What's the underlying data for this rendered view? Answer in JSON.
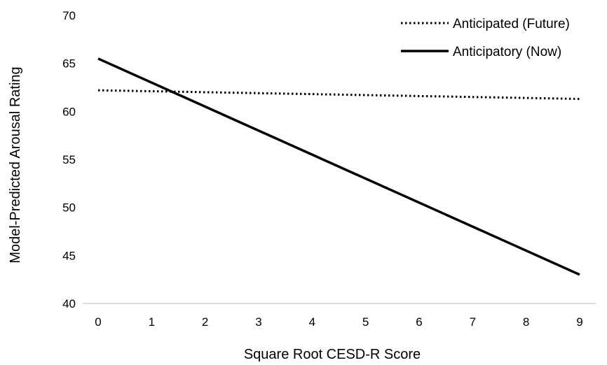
{
  "chart_data": {
    "type": "line",
    "title": "",
    "xlabel": "Square Root CESD-R Score",
    "ylabel": "Model-Predicted Arousal Rating",
    "xlim": [
      0,
      9
    ],
    "ylim": [
      40,
      70
    ],
    "x_ticks": [
      "0",
      "1",
      "2",
      "3",
      "4",
      "5",
      "6",
      "7",
      "8",
      "9"
    ],
    "y_ticks": [
      "40",
      "45",
      "50",
      "55",
      "60",
      "65",
      "70"
    ],
    "grid": false,
    "legend_position": "top-right",
    "series": [
      {
        "name": "Anticipated (Future)",
        "style": "dotted",
        "color": "#000000",
        "x": [
          0,
          9
        ],
        "y": [
          62.2,
          61.3
        ]
      },
      {
        "name": "Anticipatory (Now)",
        "style": "solid",
        "color": "#000000",
        "x": [
          0,
          9
        ],
        "y": [
          65.5,
          43.0
        ]
      }
    ]
  }
}
